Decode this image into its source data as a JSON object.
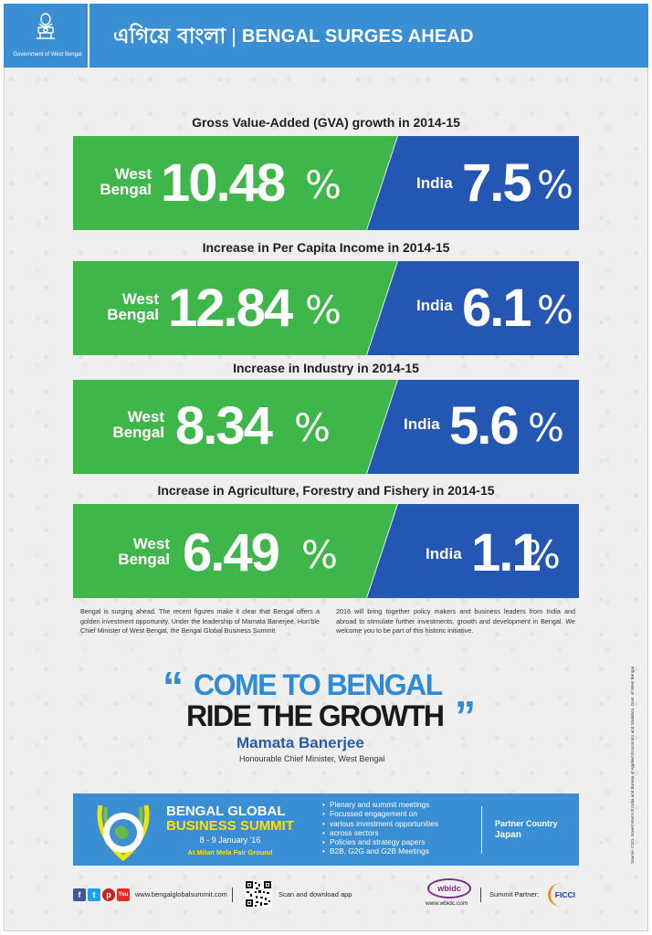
{
  "header": {
    "gov_label": "Government of West Bengal",
    "title_bengali": "এগিয়ে বাংলা",
    "separator": "|",
    "title_english": "BENGAL SURGES AHEAD"
  },
  "colors": {
    "header_blue": "#3a8fd4",
    "wb_green": "#3eb649",
    "india_blue": "#2456b3",
    "quote_blue": "#2f8bd6",
    "name_blue": "#2a5aa6",
    "summit_yellow": "#ffe000"
  },
  "stats": [
    {
      "title": "Gross Value-Added (GVA) growth in 2014-15",
      "wb_label": [
        "West",
        "Bengal"
      ],
      "wb_value": "10.48",
      "india_label": "India",
      "india_value": "7.5",
      "unit": "%"
    },
    {
      "title": "Increase in Per Capita Income in 2014-15",
      "wb_label": [
        "West",
        "Bengal"
      ],
      "wb_value": "12.84",
      "india_label": "India",
      "india_value": "6.1",
      "unit": "%"
    },
    {
      "title": "Increase in Industry in 2014-15",
      "wb_label": [
        "West",
        "Bengal"
      ],
      "wb_value": "8.34",
      "india_label": "India",
      "india_value": "5.6",
      "unit": "%"
    },
    {
      "title": "Increase in Agriculture, Forestry and Fishery in 2014-15",
      "wb_label": [
        "West",
        "Bengal"
      ],
      "wb_value": "6.49",
      "india_label": "India",
      "india_value": "1.1",
      "unit": "%"
    }
  ],
  "body_text": {
    "left": "Bengal is surging ahead. The recent figures make it clear that Bengal offers a golden investment opportunity. Under the leadership of Mamata Banerjee, Hon'ble Chief Minister of  West Bengal, the Bengal Global Business Summit",
    "right": "2016 will bring together policy makers and business leaders from India and abroad to stimulate further investments, growth and development in Bengal. We welcome you to be part of this historic initiative."
  },
  "quote": {
    "open_mark": "“",
    "line1": "COME TO BENGAL",
    "line2": "RIDE THE GROWTH",
    "close_mark": "”",
    "name": "Mamata Banerjee",
    "role": "Honourable Chief Minister, West Bengal"
  },
  "summit": {
    "title_line1": "BENGAL GLOBAL",
    "title_line2": "BUSINESS SUMMIT",
    "dates": "8 - 9 January '16",
    "venue": "At Milan Mela Fair Ground",
    "features": [
      "Plenary and summit meetings",
      "Focussed engagement on",
      "various investment opportunities",
      "across sectors",
      "Policies and strategy papers",
      "B2B, G2G and G2B Meetings"
    ],
    "partner_country_label": "Partner Country",
    "partner_country": "Japan"
  },
  "footer": {
    "social_icons": [
      "facebook-icon",
      "twitter-icon",
      "pinterest-icon",
      "youtube-icon"
    ],
    "social_glyphs": [
      "f",
      "t",
      "p",
      "You"
    ],
    "website": "www.bengalglobalsummit.com",
    "scan_text": "Scan and download app",
    "wbidc_logo_text": "wbidc",
    "wbidc_url": "www.wbidc.com",
    "summit_partner_label": "Summit Partner:",
    "ficci_logo_text": "FICCI"
  },
  "source_note": "Source: CSO, Government of India and Bureau of Applied Economics and Statistics, Govt. of West Bengal"
}
